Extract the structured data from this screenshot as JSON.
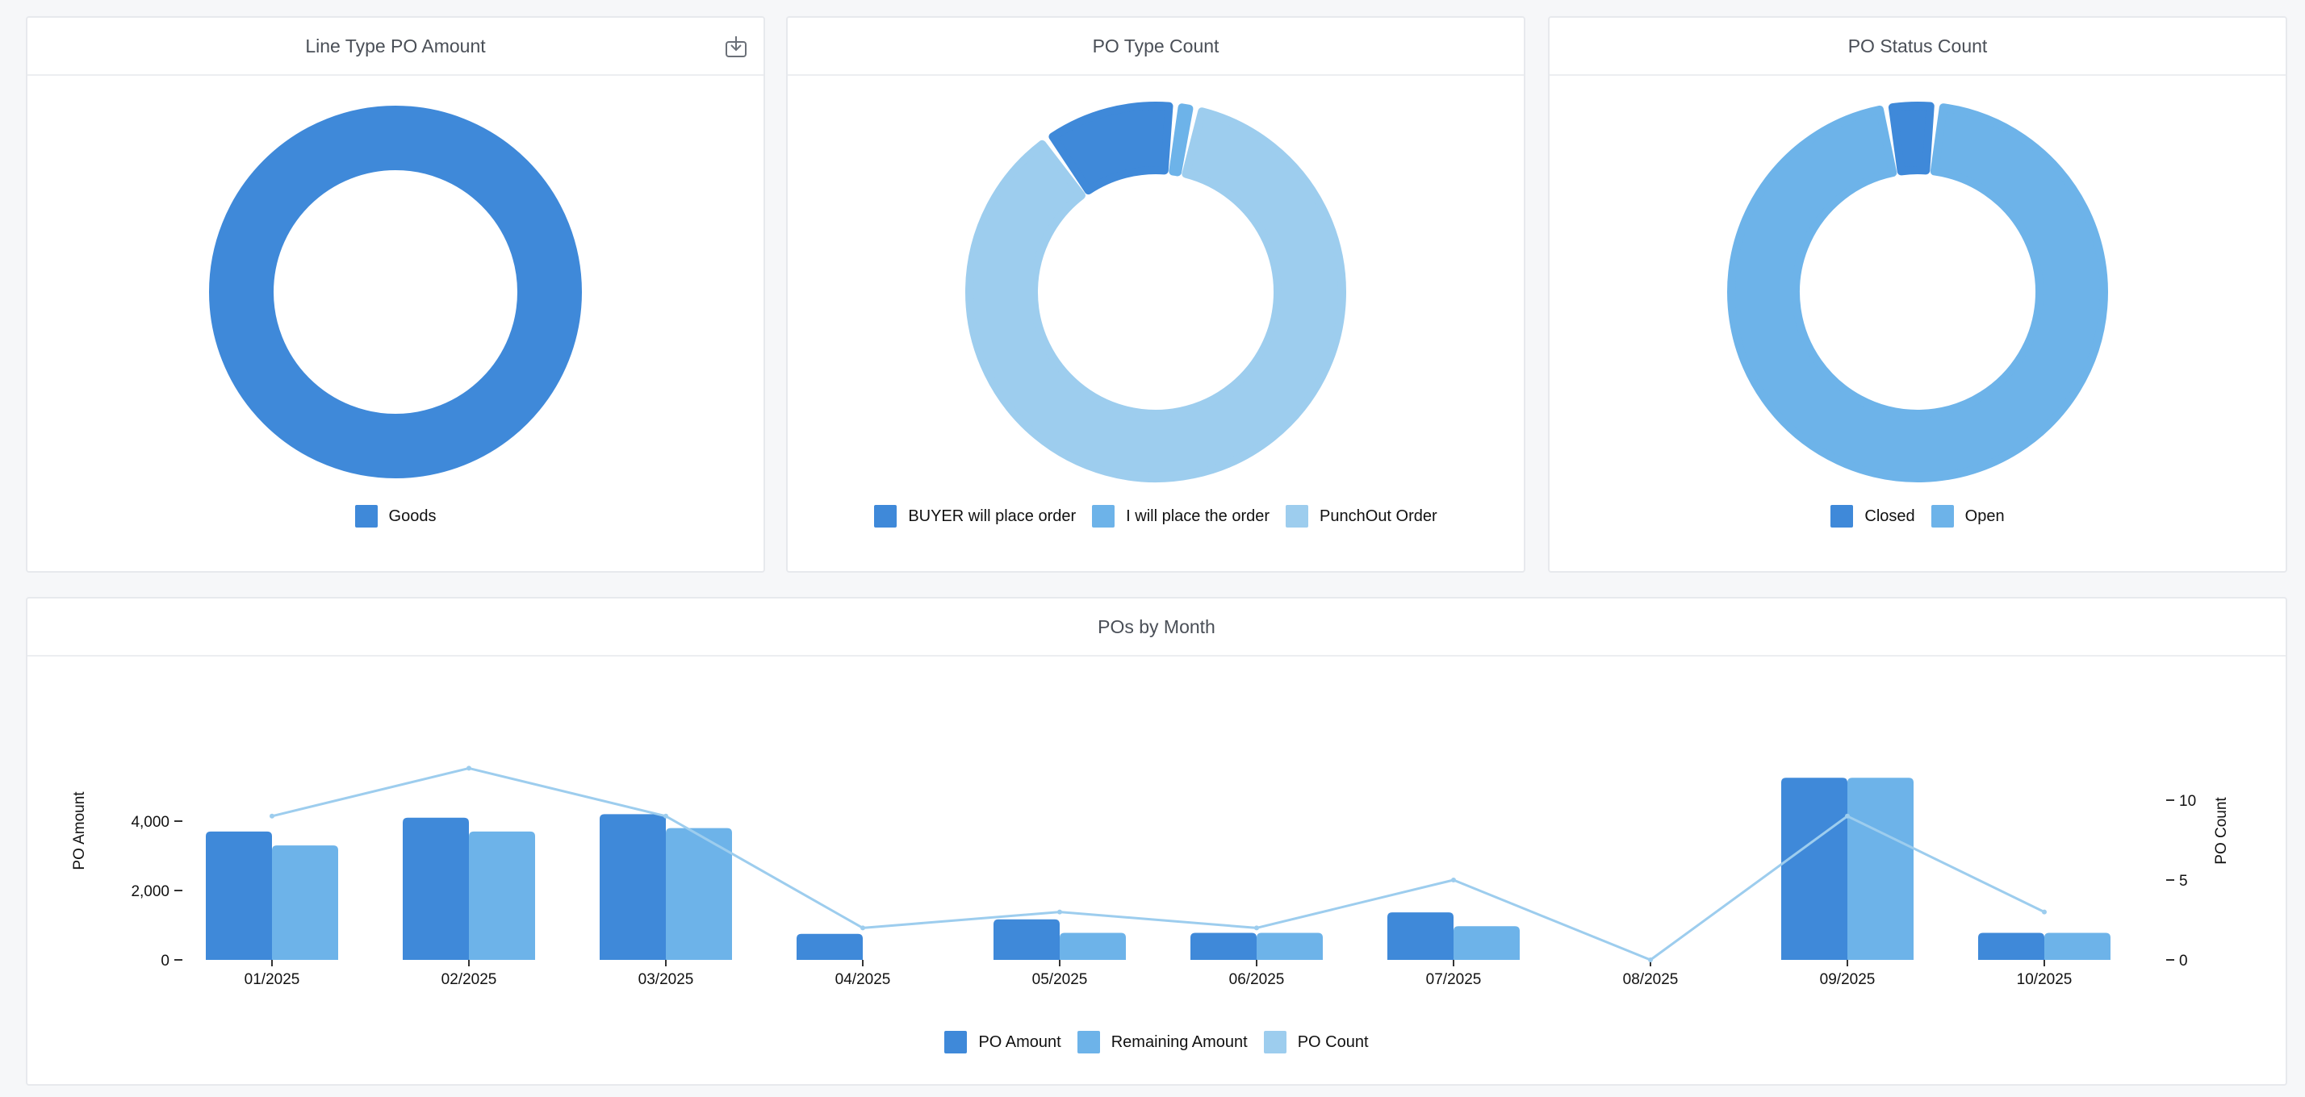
{
  "colors": {
    "series1": "#3f89d9",
    "series2": "#6db3e9",
    "series3": "#9dcdee",
    "icon": "#6b7078"
  },
  "icons": {
    "download": "download-icon"
  },
  "chart_data": [
    {
      "type": "pie",
      "title": "Line Type PO Amount",
      "labels": [
        "Goods"
      ],
      "values": [
        100
      ],
      "legend": [
        "Goods"
      ]
    },
    {
      "type": "pie",
      "title": "PO Type Count",
      "labels": [
        "BUYER will place order",
        "I will place the order",
        "PunchOut Order"
      ],
      "values": [
        2,
        0.3,
        15
      ],
      "legend": [
        "BUYER will place order",
        "I will place the order",
        "PunchOut Order"
      ]
    },
    {
      "type": "pie",
      "title": "PO Status Count",
      "labels": [
        "Closed",
        "Open"
      ],
      "values": [
        1,
        22
      ],
      "legend": [
        "Closed",
        "Open"
      ]
    },
    {
      "type": "bar",
      "title": "POs by Month",
      "categories": [
        "01/2025",
        "02/2025",
        "03/2025",
        "04/2025",
        "05/2025",
        "06/2025",
        "07/2025",
        "08/2025",
        "09/2025",
        "10/2025"
      ],
      "series": [
        {
          "name": "PO Amount",
          "type": "bar",
          "axis": "left",
          "values": [
            3700,
            4100,
            4200,
            750,
            1170,
            780,
            1370,
            0,
            5250,
            780
          ]
        },
        {
          "name": "Remaining Amount",
          "type": "bar",
          "axis": "left",
          "values": [
            3300,
            3700,
            3800,
            0,
            780,
            780,
            970,
            0,
            5250,
            780
          ]
        },
        {
          "name": "PO Count",
          "type": "line",
          "axis": "right",
          "values": [
            9,
            12,
            9,
            2,
            3,
            2,
            5,
            0,
            9,
            3
          ]
        }
      ],
      "ylabel": "PO Amount",
      "y2label": "PO Count",
      "yticks": [
        "0",
        "2,000",
        "4,000"
      ],
      "ytick_values": [
        0,
        2000,
        4000
      ],
      "y2ticks": [
        "0",
        "5",
        "10"
      ],
      "y2tick_values": [
        0,
        5,
        10
      ],
      "ylim": [
        0,
        6000
      ],
      "y2lim": [
        0,
        13.5
      ],
      "legend": [
        "PO Amount",
        "Remaining Amount",
        "PO Count"
      ]
    }
  ]
}
